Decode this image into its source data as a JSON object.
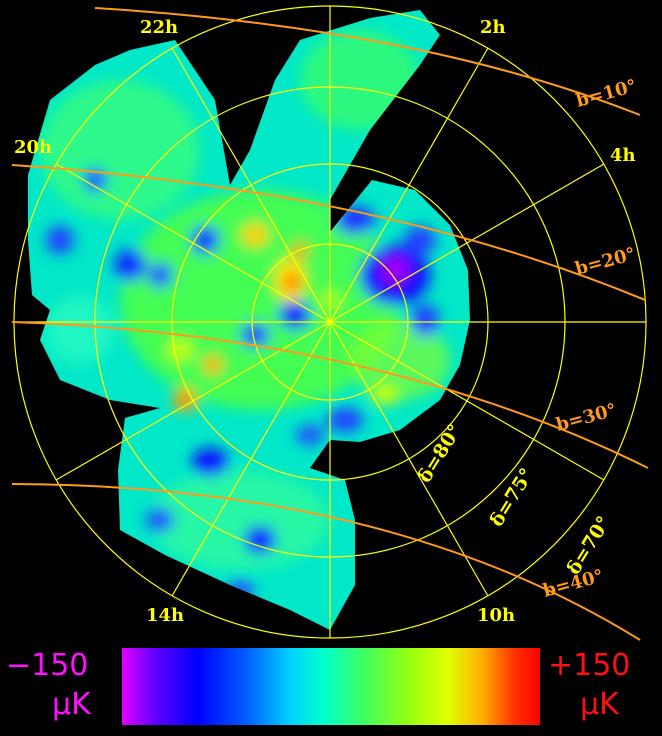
{
  "map": {
    "ra_labels": [
      {
        "text": "22h"
      },
      {
        "text": "2h"
      },
      {
        "text": "20h"
      },
      {
        "text": "4h"
      },
      {
        "text": "14h"
      },
      {
        "text": "10h"
      }
    ],
    "galactic_labels": [
      {
        "text": "b=10°"
      },
      {
        "text": "b=20°"
      },
      {
        "text": "b=30°"
      },
      {
        "text": "b=40°"
      }
    ],
    "dec_labels": [
      {
        "text": "δ=80°"
      },
      {
        "text": "δ=75°"
      },
      {
        "text": "δ=70°"
      }
    ]
  },
  "colorbar": {
    "min_value": "−150",
    "min_unit": "μK",
    "max_value": "+150",
    "max_unit": "μK",
    "min_color": "#ff10ff",
    "max_color": "#ff1010",
    "gradient": [
      "#e000ff",
      "#5000ff",
      "#0000ff",
      "#0050ff",
      "#00a0ff",
      "#00ffff",
      "#40ffa0",
      "#80ff40",
      "#c0ff00",
      "#ffff00",
      "#ffa000",
      "#ff4000",
      "#ff0000"
    ]
  },
  "colors": {
    "grid": "#ffff00",
    "galactic": "#ff9a1a"
  }
}
